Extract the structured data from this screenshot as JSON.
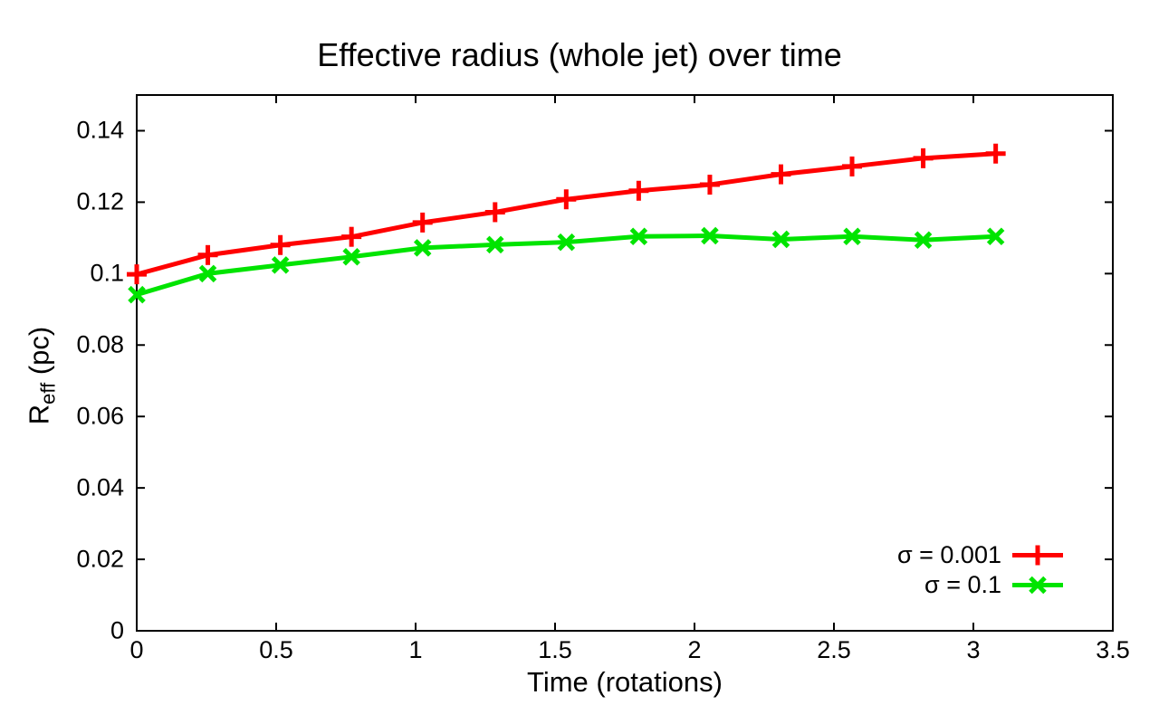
{
  "page": {
    "background": "#ffffff"
  },
  "chart_data": {
    "type": "line",
    "title": "Effective radius (whole jet) over time",
    "xlabel": "Time (rotations)",
    "ylabel": {
      "base": "R",
      "sub": "eff",
      "rest": " (pc)"
    },
    "xlim": [
      0,
      3.5
    ],
    "ylim": [
      0,
      0.15
    ],
    "grid": false,
    "legend_position": "bottom-right-inside",
    "axis_color": "#000000",
    "x_ticks": [
      0,
      0.5,
      1,
      1.5,
      2,
      2.5,
      3,
      3.5
    ],
    "x_tick_labels": [
      "0",
      "0.5",
      "1",
      "1.5",
      "2",
      "2.5",
      "3",
      "3.5"
    ],
    "y_ticks": [
      0,
      0.02,
      0.04,
      0.06,
      0.08,
      0.1,
      0.12,
      0.14
    ],
    "y_tick_labels": [
      "0",
      "0.02",
      "0.04",
      "0.06",
      "0.08",
      "0.1",
      "0.12",
      "0.14"
    ],
    "x": [
      0,
      0.255,
      0.515,
      0.77,
      1.025,
      1.285,
      1.54,
      1.8,
      2.055,
      2.31,
      2.565,
      2.82,
      3.08
    ],
    "series": [
      {
        "name": "σ = 0.001",
        "color": "#ff0000",
        "marker": "plus",
        "values": [
          0.0998,
          0.1052,
          0.108,
          0.1103,
          0.1143,
          0.1172,
          0.1208,
          0.1232,
          0.1249,
          0.1278,
          0.13,
          0.1323,
          0.1336
        ]
      },
      {
        "name": "σ = 0.1",
        "color": "#00e400",
        "marker": "x",
        "values": [
          0.0941,
          0.1,
          0.1024,
          0.1047,
          0.1072,
          0.1081,
          0.1088,
          0.1104,
          0.1106,
          0.1096,
          0.1104,
          0.1094,
          0.1104
        ]
      }
    ]
  }
}
